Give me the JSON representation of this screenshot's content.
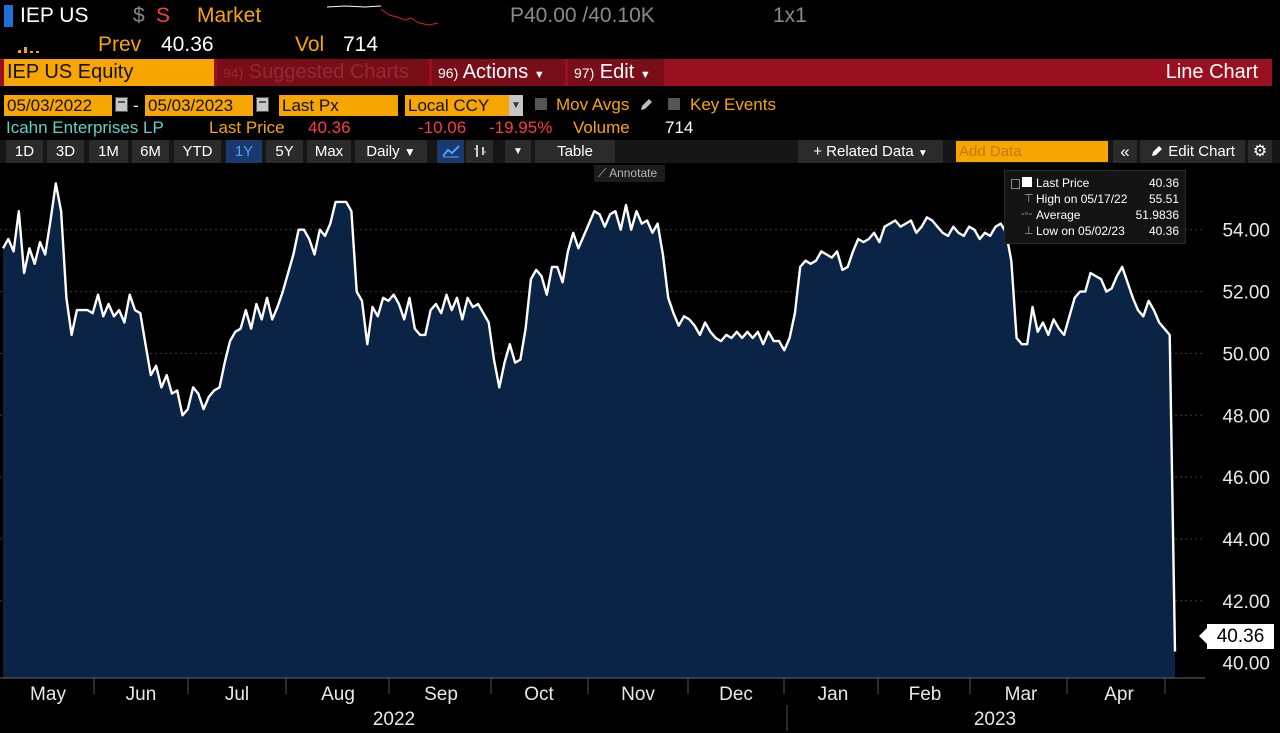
{
  "header": {
    "ticker": "IEP US",
    "currency_symbol": "$",
    "exchange_flag": "S",
    "source": "Market",
    "bid_ask": "P40.00 /40.10K",
    "size": "1x1",
    "prev_label": "Prev",
    "prev_value": "40.36",
    "vol_label": "Vol",
    "vol_value": "714"
  },
  "function_bar": {
    "security": "IEP US Equity",
    "suggested_num": "94)",
    "suggested_label": "Suggested Charts",
    "actions_num": "96)",
    "actions_label": "Actions",
    "edit_num": "97)",
    "edit_label": "Edit",
    "title": "Line Chart"
  },
  "params": {
    "start_date": "05/03/2022",
    "date_sep": "-",
    "end_date": "05/03/2023",
    "field": "Last Px",
    "currency": "Local CCY",
    "mov_avgs": "Mov Avgs",
    "key_events": "Key Events"
  },
  "summary": {
    "name": "Icahn Enterprises LP",
    "last_price_label": "Last Price",
    "last_price": "40.36",
    "change": "-10.06",
    "change_pct": "-19.95%",
    "volume_label": "Volume",
    "volume": "714"
  },
  "toolbar": {
    "periods": [
      "1D",
      "3D",
      "1M",
      "6M",
      "YTD",
      "1Y",
      "5Y",
      "Max"
    ],
    "active_period": "1Y",
    "frequency": "Daily",
    "table": "Table",
    "related": "+ Related Data",
    "add_data_placeholder": "Add Data",
    "edit_chart": "Edit Chart"
  },
  "annotate": "Annotate",
  "colors": {
    "amber": "#f7a600",
    "fill": "#0b2344",
    "line": "#ffffff",
    "bar": "#9a1020"
  },
  "chart_data": {
    "type": "area",
    "title": "IEP US Equity Line Chart",
    "legend": [
      {
        "label": "Last Price",
        "value": "40.36"
      },
      {
        "label": "High on 05/17/22",
        "value": "55.51"
      },
      {
        "label": "Average",
        "value": "51.9836"
      },
      {
        "label": "Low on 05/02/23",
        "value": "40.36"
      }
    ],
    "y_ticks": [
      42,
      44,
      46,
      48,
      50,
      52,
      54
    ],
    "y_tick_labels": [
      "42.00",
      "44.00",
      "46.00",
      "48.00",
      "50.00",
      "52.00",
      "54.00"
    ],
    "ylim": [
      39.6,
      55.9
    ],
    "months": [
      "May",
      "Jun",
      "Jul",
      "Aug",
      "Sep",
      "Oct",
      "Nov",
      "Dec",
      "Jan",
      "Feb",
      "Mar",
      "Apr"
    ],
    "years": [
      "2022",
      "2023"
    ],
    "last_value_label": "40.36",
    "values": [
      53.4,
      53.7,
      53.3,
      54.6,
      52.6,
      53.4,
      52.9,
      53.6,
      53.2,
      54.3,
      55.5,
      54.6,
      51.8,
      50.6,
      51.4,
      51.4,
      51.4,
      51.3,
      51.9,
      51.2,
      51.6,
      51.2,
      51.4,
      51.0,
      51.9,
      51.4,
      51.3,
      50.3,
      49.3,
      49.6,
      48.9,
      49.3,
      48.7,
      48.8,
      48.0,
      48.2,
      48.9,
      48.7,
      48.2,
      48.6,
      48.8,
      48.9,
      49.7,
      50.4,
      50.7,
      50.8,
      51.4,
      50.8,
      51.6,
      51.1,
      51.8,
      51.1,
      51.5,
      52.0,
      52.6,
      53.2,
      54.0,
      54.0,
      53.7,
      53.2,
      54.0,
      53.8,
      54.2,
      54.9,
      54.9,
      54.9,
      54.6,
      52.0,
      51.7,
      50.3,
      51.5,
      51.2,
      51.8,
      51.7,
      51.9,
      51.6,
      51.1,
      51.8,
      50.8,
      50.6,
      50.6,
      51.4,
      51.6,
      51.3,
      51.9,
      51.4,
      51.8,
      51.1,
      51.8,
      51.5,
      51.6,
      51.3,
      51.0,
      49.8,
      48.9,
      49.7,
      50.3,
      49.7,
      49.8,
      50.8,
      52.4,
      52.7,
      52.5,
      51.9,
      52.8,
      52.8,
      52.3,
      53.3,
      53.9,
      53.4,
      53.8,
      54.2,
      54.6,
      54.5,
      54.1,
      54.5,
      54.6,
      54.0,
      54.8,
      54.0,
      54.6,
      54.2,
      54.3,
      53.9,
      54.2,
      53.2,
      51.8,
      51.3,
      50.9,
      51.2,
      51.1,
      50.9,
      50.6,
      51.0,
      50.7,
      50.5,
      50.4,
      50.6,
      50.5,
      50.7,
      50.5,
      50.7,
      50.5,
      50.7,
      50.3,
      50.7,
      50.4,
      50.4,
      50.1,
      50.5,
      51.3,
      52.8,
      53.0,
      52.9,
      53.0,
      53.3,
      53.2,
      53.1,
      53.3,
      52.7,
      52.8,
      53.3,
      53.7,
      53.6,
      53.7,
      53.9,
      53.6,
      54.1,
      54.2,
      54.3,
      54.1,
      54.2,
      54.3,
      53.9,
      54.1,
      54.4,
      54.3,
      54.1,
      53.9,
      53.8,
      54.1,
      53.9,
      53.8,
      54.1,
      54.0,
      53.7,
      53.9,
      53.8,
      54.1,
      54.2,
      53.9,
      53.0,
      50.5,
      50.3,
      50.3,
      51.5,
      50.7,
      51.0,
      50.6,
      51.1,
      50.8,
      50.6,
      51.2,
      51.8,
      52.0,
      52.0,
      52.6,
      52.5,
      52.4,
      52.0,
      52.1,
      52.5,
      52.8,
      52.3,
      51.8,
      51.4,
      51.2,
      51.7,
      51.4,
      51.0,
      50.8,
      50.6,
      40.36
    ]
  }
}
